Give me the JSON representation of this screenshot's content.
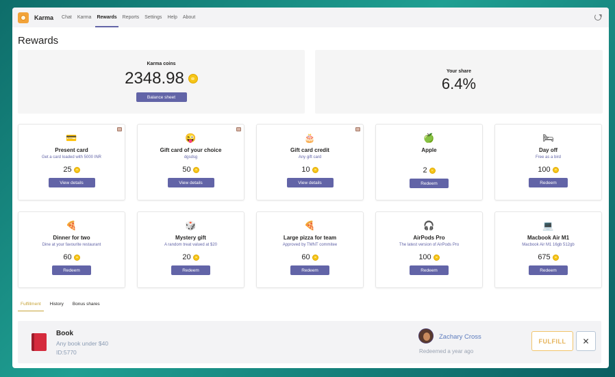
{
  "app": {
    "name": "Karma"
  },
  "nav": {
    "tabs": [
      {
        "label": "Chat"
      },
      {
        "label": "Karma"
      },
      {
        "label": "Rewards",
        "active": true
      },
      {
        "label": "Reports"
      },
      {
        "label": "Settings"
      },
      {
        "label": "Help"
      },
      {
        "label": "About"
      }
    ]
  },
  "page": {
    "title": "Rewards"
  },
  "karma_coins": {
    "label": "Karma coins",
    "value": "2348.98",
    "button": "Balance sheet"
  },
  "your_share": {
    "label": "Your share",
    "value": "6.4%"
  },
  "rewards": [
    {
      "title": "Present card",
      "desc": "Get a card loaded with 5000 INR",
      "price": "25",
      "button": "View details",
      "icon": "credit-card-icon",
      "glyph": "💳",
      "tag": true
    },
    {
      "title": "Gift card of your choice",
      "desc": "dgsdsg",
      "price": "50",
      "button": "View details",
      "icon": "winking-face-icon",
      "glyph": "😜",
      "tag": true
    },
    {
      "title": "Gift card credit",
      "desc": "Any gift card",
      "price": "10",
      "button": "View details",
      "icon": "cake-icon",
      "glyph": "🎂",
      "tag": true
    },
    {
      "title": "Apple",
      "desc": "",
      "price": "2",
      "button": "Redeem",
      "icon": "apple-icon",
      "glyph": "🍏",
      "tag": false
    },
    {
      "title": "Day off",
      "desc": "Free as a bird",
      "price": "100",
      "button": "Redeem",
      "icon": "bed-icon",
      "glyph": "🛏",
      "tag": false
    },
    {
      "title": "Dinner for two",
      "desc": "Dine at your favourite restaurant",
      "price": "60",
      "button": "Redeem",
      "icon": "pizza-icon",
      "glyph": "🍕",
      "tag": false
    },
    {
      "title": "Mystery gift",
      "desc": "A random treat valued at $20",
      "price": "20",
      "button": "Redeem",
      "icon": "dice-icon",
      "glyph": "🎲",
      "tag": false
    },
    {
      "title": "Large pizza for team",
      "desc": "Approved by TMNT commitee",
      "price": "60",
      "button": "Redeem",
      "icon": "pizza-icon",
      "glyph": "🍕",
      "tag": false
    },
    {
      "title": "AirPods Pro",
      "desc": "The latest version of AirPods Pro",
      "price": "100",
      "button": "Redeem",
      "icon": "airpods-icon",
      "glyph": "🎧",
      "tag": false
    },
    {
      "title": "Macbook Air M1",
      "desc": "Macbook Air M1 16gb 512gb",
      "price": "675",
      "button": "Redeem",
      "icon": "laptop-icon",
      "glyph": "💻",
      "tag": false
    }
  ],
  "subtabs": [
    {
      "label": "Fulfillment",
      "active": true
    },
    {
      "label": "History"
    },
    {
      "label": "Bonus shares"
    }
  ],
  "fulfillment": {
    "item_title": "Book",
    "item_desc": "Any book under $40",
    "item_id": "ID:5770",
    "user_name": "Zachary Cross",
    "redeemed_time": "Redeemed a year ago",
    "fulfill_label": "FULFILL",
    "close_label": "✕"
  },
  "colors": {
    "accent": "#6264a7",
    "coin": "#f5c518",
    "fulfill": "#e6b35a"
  }
}
